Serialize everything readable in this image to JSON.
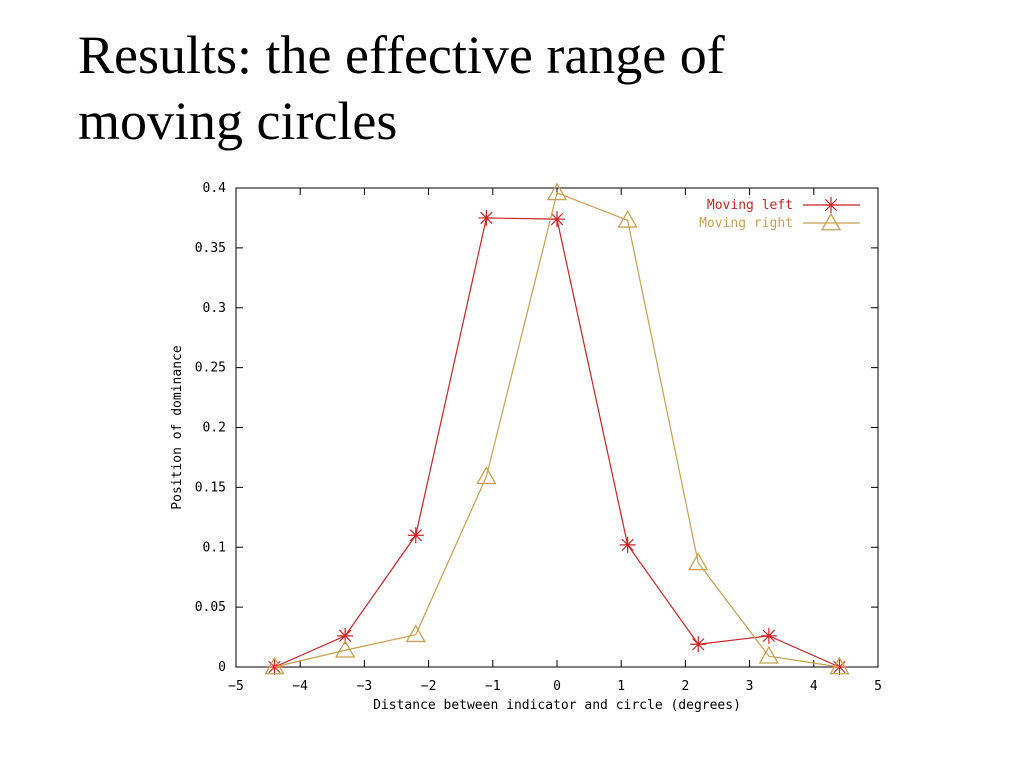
{
  "slide": {
    "title_lines": [
      "Results: the effective range of",
      "moving circles"
    ]
  },
  "chart_data": {
    "type": "line",
    "title": "",
    "xlabel": "Distance between indicator and circle (degrees)",
    "ylabel": "Position of dominance",
    "xlim": [
      -5,
      5
    ],
    "ylim": [
      0,
      0.4
    ],
    "xticks": [
      -5,
      -4,
      -3,
      -2,
      -1,
      0,
      1,
      2,
      3,
      4,
      5
    ],
    "yticks": [
      0,
      0.05,
      0.1,
      0.15,
      0.2,
      0.25,
      0.3,
      0.35,
      0.4
    ],
    "xtick_labels": [
      "−5",
      "−4",
      "−3",
      "−2",
      "−1",
      "0",
      "1",
      "2",
      "3",
      "4",
      "5"
    ],
    "ytick_labels": [
      "0",
      "0.05",
      "0.1",
      "0.15",
      "0.2",
      "0.25",
      "0.3",
      "0.35",
      "0.4"
    ],
    "grid": false,
    "legend_position": "top-right",
    "series": [
      {
        "name": "Moving left",
        "color": "#cc2222",
        "marker": "asterisk",
        "x": [
          -4.4,
          -3.3,
          -2.2,
          -1.1,
          0,
          1.1,
          2.2,
          3.3,
          4.4
        ],
        "y": [
          0.0,
          0.026,
          0.11,
          0.375,
          0.374,
          0.102,
          0.019,
          0.026,
          0.0
        ]
      },
      {
        "name": "Moving right",
        "color": "#c8a050",
        "marker": "triangle",
        "x": [
          -4.4,
          -3.3,
          -2.2,
          -1.1,
          0,
          1.1,
          2.2,
          3.3,
          4.4
        ],
        "y": [
          0.0,
          0.014,
          0.027,
          0.159,
          0.396,
          0.373,
          0.087,
          0.009,
          0.0
        ]
      }
    ]
  }
}
